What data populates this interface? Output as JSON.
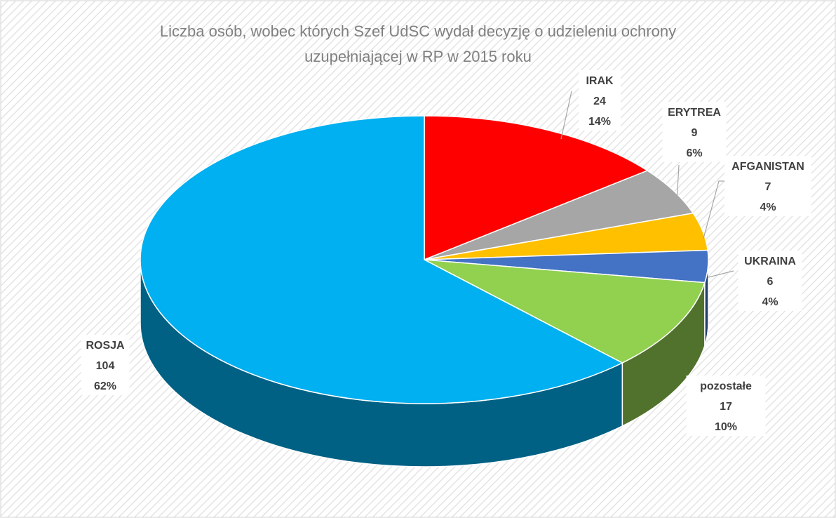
{
  "chart_data": {
    "type": "pie3d",
    "title": [
      "Liczba osób, wobec których Szef UdSC wydał decyzję o  udzieleniu ochrony",
      "uzupełniającej w RP w 2015 roku"
    ],
    "categories": [
      "IRAK",
      "ERYTREA",
      "AFGANISTAN",
      "UKRAINA",
      "pozostałe",
      "ROSJA"
    ],
    "values": [
      24,
      9,
      7,
      6,
      17,
      104
    ],
    "percent_labels": [
      "14%",
      "6%",
      "4%",
      "4%",
      "10%",
      "62%"
    ],
    "colors": [
      "#ff0000",
      "#a6a6a6",
      "#ffc000",
      "#4472c4",
      "#92d050",
      "#00b0f0"
    ]
  }
}
